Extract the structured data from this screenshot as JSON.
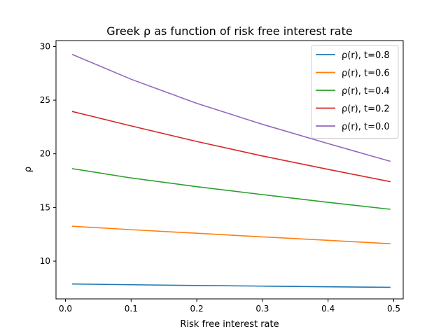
{
  "chart_data": {
    "type": "line",
    "title": "Greek ρ as function of risk free interest rate",
    "xlabel": "Risk free interest rate",
    "ylabel": "ρ",
    "xlim": [
      -0.0144,
      0.5144
    ],
    "ylim": [
      6.48,
      30.55
    ],
    "xticks": [
      0.0,
      0.1,
      0.2,
      0.3,
      0.4,
      0.5
    ],
    "xtick_labels": [
      "0.0",
      "0.1",
      "0.2",
      "0.3",
      "0.4",
      "0.5"
    ],
    "yticks": [
      10,
      15,
      20,
      25,
      30
    ],
    "ytick_labels": [
      "10",
      "15",
      "20",
      "25",
      "30"
    ],
    "grid": false,
    "legend_position": "top-right",
    "series": [
      {
        "name": "ρ(r), t=0.8",
        "color": "#1f77b4",
        "x": [
          0.01,
          0.1,
          0.2,
          0.3,
          0.4,
          0.495
        ],
        "y": [
          7.87,
          7.8,
          7.73,
          7.67,
          7.61,
          7.56
        ]
      },
      {
        "name": "ρ(r), t=0.6",
        "color": "#ff7f0e",
        "x": [
          0.01,
          0.1,
          0.2,
          0.3,
          0.4,
          0.495
        ],
        "y": [
          13.25,
          12.93,
          12.6,
          12.26,
          11.94,
          11.62
        ]
      },
      {
        "name": "ρ(r), t=0.4",
        "color": "#2ca02c",
        "x": [
          0.01,
          0.1,
          0.2,
          0.3,
          0.4,
          0.495
        ],
        "y": [
          18.62,
          17.75,
          16.94,
          16.2,
          15.48,
          14.83
        ]
      },
      {
        "name": "ρ(r), t=0.2",
        "color": "#d62728",
        "x": [
          0.01,
          0.1,
          0.2,
          0.3,
          0.4,
          0.495
        ],
        "y": [
          23.95,
          22.6,
          21.15,
          19.8,
          18.55,
          17.4
        ]
      },
      {
        "name": "ρ(r), t=0.0",
        "color": "#9467bd",
        "x": [
          0.01,
          0.1,
          0.2,
          0.3,
          0.4,
          0.495
        ],
        "y": [
          29.27,
          26.95,
          24.7,
          22.75,
          20.95,
          19.3
        ]
      }
    ]
  }
}
